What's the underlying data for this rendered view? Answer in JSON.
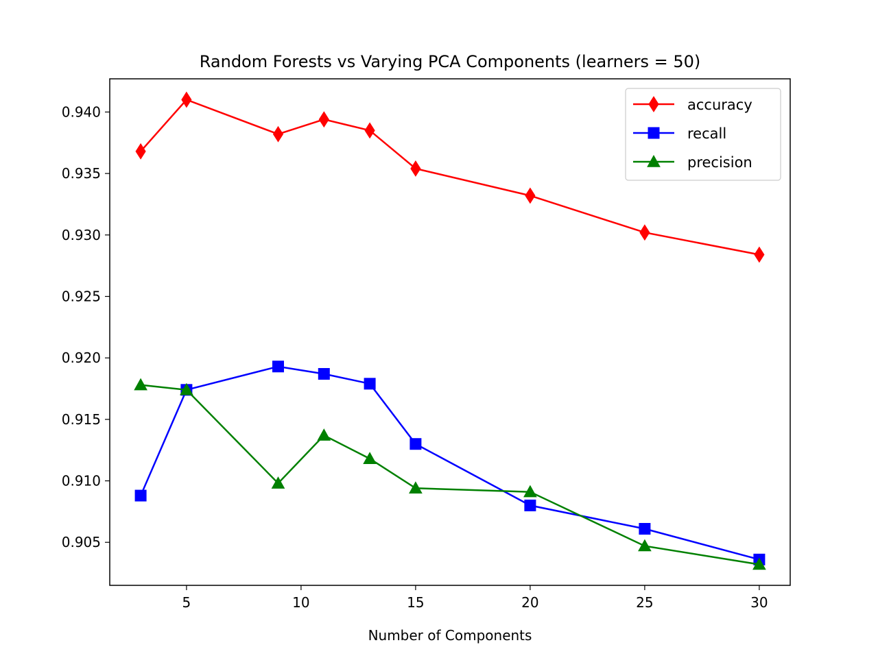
{
  "chart_data": {
    "type": "line",
    "title": "Random Forests vs Varying PCA Components (learners = 50)",
    "xlabel": "Number of Components",
    "ylabel": "",
    "x": [
      3,
      5,
      9,
      11,
      13,
      15,
      20,
      25,
      30
    ],
    "xlim": [
      1.65,
      31.35
    ],
    "ylim": [
      0.9015,
      0.9427
    ],
    "xticks": [
      5,
      10,
      15,
      20,
      25,
      30
    ],
    "yticks": [
      0.905,
      0.91,
      0.915,
      0.92,
      0.925,
      0.93,
      0.935,
      0.94
    ],
    "xtick_labels": [
      "5",
      "10",
      "15",
      "20",
      "25",
      "30"
    ],
    "ytick_labels": [
      "0.905",
      "0.910",
      "0.915",
      "0.920",
      "0.925",
      "0.930",
      "0.935",
      "0.940"
    ],
    "grid": false,
    "legend_position": "top-right",
    "series": [
      {
        "name": "accuracy",
        "color": "#ff0000",
        "marker": "diamond",
        "values": [
          0.9368,
          0.941,
          0.9382,
          0.9394,
          0.9385,
          0.9354,
          0.9332,
          0.9302,
          0.9284
        ]
      },
      {
        "name": "recall",
        "color": "#0000ff",
        "marker": "square",
        "values": [
          0.9088,
          0.9174,
          0.9193,
          0.9187,
          0.9179,
          0.913,
          0.908,
          0.9061,
          0.9036
        ]
      },
      {
        "name": "precision",
        "color": "#008000",
        "marker": "triangle",
        "values": [
          0.9178,
          0.9174,
          0.9098,
          0.9137,
          0.9118,
          0.9094,
          0.9091,
          0.9047,
          0.9032
        ]
      }
    ]
  }
}
